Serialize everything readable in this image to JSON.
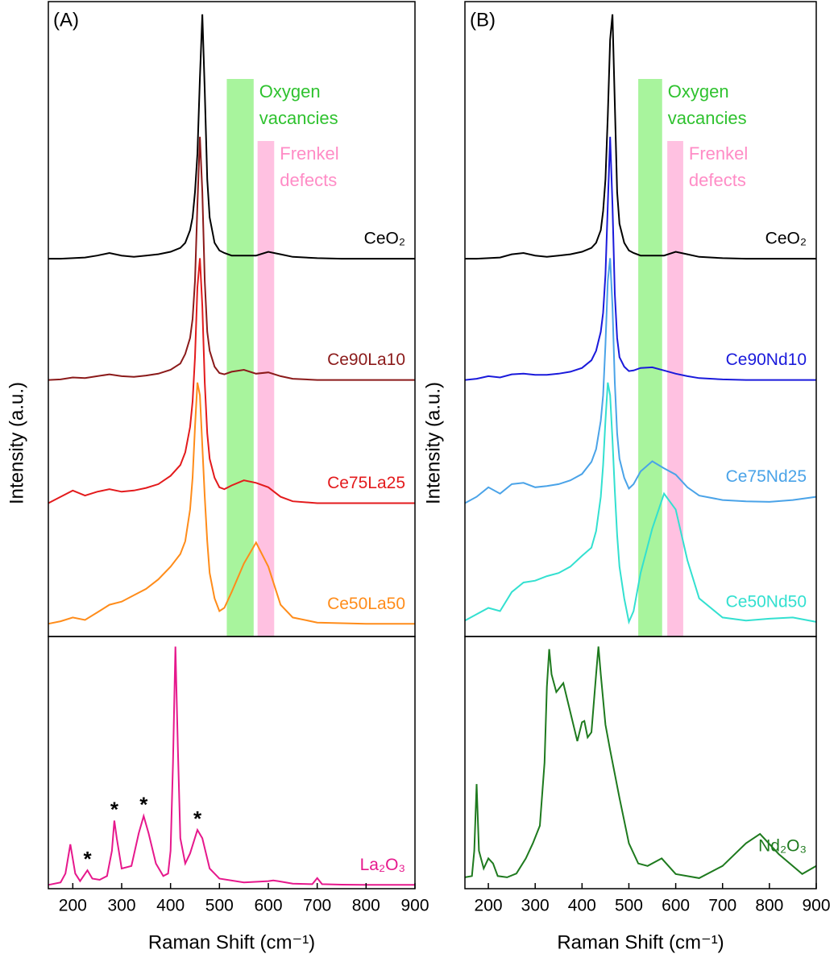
{
  "chart_data": [
    {
      "type": "line",
      "title": "(A)",
      "ylabel": "Intensity (a.u.)",
      "x": [
        150,
        175,
        200,
        225,
        250,
        275,
        300,
        325,
        350,
        375,
        400,
        420,
        430,
        440,
        445,
        450,
        455,
        460,
        465,
        470,
        475,
        480,
        490,
        500,
        510,
        525,
        550,
        575,
        600,
        625,
        650,
        700,
        750,
        800,
        850,
        900
      ],
      "xlim": [
        150,
        900
      ],
      "ylim": [
        0,
        100
      ],
      "bands": [
        {
          "label_lines": [
            "Oxygen",
            "vacancies"
          ],
          "range": [
            515,
            570
          ],
          "color": "#99f28c"
        },
        {
          "label_lines": [
            "Frenkel",
            "defects"
          ],
          "range": [
            578,
            612
          ],
          "color": "#ffb6dc"
        }
      ],
      "series": [
        {
          "name": "CeO₂",
          "color": "#000000",
          "values": [
            59.5,
            59.5,
            59.6,
            59.7,
            60,
            60.4,
            60,
            59.8,
            60,
            60.2,
            60.6,
            61.2,
            62,
            64,
            66,
            70,
            76,
            88,
            98,
            86,
            72,
            66,
            62,
            60.8,
            60.4,
            60,
            60,
            60,
            60.6,
            60.2,
            59.8,
            59.6,
            59.5,
            59.5,
            59.5,
            59.5
          ]
        },
        {
          "name": "Ce90La10",
          "color": "#8b1a1a",
          "values": [
            40.4,
            40.5,
            40.8,
            40.7,
            41,
            41.3,
            41,
            40.9,
            41.1,
            41.4,
            42,
            43,
            44.5,
            47,
            50,
            56,
            68,
            78.7,
            70,
            56,
            48,
            45,
            42.5,
            41.5,
            41.3,
            41.7,
            42,
            41.4,
            41.6,
            41,
            40.6,
            40.4,
            40.4,
            40.4,
            40.4,
            40.4
          ]
        },
        {
          "name": "Ce75La25",
          "color": "#e31a1c",
          "values": [
            21,
            22,
            23,
            22.2,
            22.8,
            23.2,
            22.8,
            23,
            23.4,
            24,
            25.3,
            27,
            29,
            33,
            37,
            44,
            55,
            59.6,
            52,
            40,
            32,
            28,
            25,
            23.5,
            23.2,
            23.8,
            24.6,
            24.2,
            23.5,
            22,
            21.3,
            21,
            21,
            21,
            21,
            21
          ]
        },
        {
          "name": "Ce50La50",
          "color": "#ff8c1a",
          "values": [
            2,
            2.4,
            3,
            2.6,
            3.8,
            5,
            5.5,
            6.5,
            7.5,
            9,
            11,
            13,
            15,
            20,
            25,
            33,
            40,
            38,
            30,
            22,
            15,
            10,
            6,
            4,
            4.5,
            7,
            11.5,
            14.8,
            11,
            5,
            3,
            2.2,
            2.1,
            2,
            2,
            2
          ]
        }
      ]
    },
    {
      "type": "line",
      "xlabel": "Raman Shift (cm⁻¹)",
      "x": [
        150,
        175,
        185,
        195,
        205,
        215,
        230,
        240,
        255,
        270,
        280,
        285,
        290,
        300,
        320,
        335,
        345,
        355,
        370,
        385,
        395,
        400,
        405,
        410,
        415,
        420,
        430,
        440,
        455,
        465,
        480,
        500,
        550,
        600,
        610,
        620,
        650,
        690,
        700,
        710,
        750,
        800,
        850,
        900
      ],
      "xlim": [
        150,
        900
      ],
      "ylim": [
        0,
        100
      ],
      "xticks": [
        200,
        300,
        400,
        500,
        600,
        700,
        800,
        900
      ],
      "annotations": [
        {
          "text": "*",
          "x": 230
        },
        {
          "text": "*",
          "x": 285
        },
        {
          "text": "*",
          "x": 345
        },
        {
          "text": "*",
          "x": 455
        }
      ],
      "series": [
        {
          "name": "La₂O₃",
          "color": "#e6188c",
          "values": [
            1.5,
            2.5,
            6,
            17.6,
            6,
            3,
            7.3,
            4,
            3.5,
            5,
            15,
            27,
            20,
            8,
            9,
            22,
            28.8,
            22,
            10,
            5,
            6,
            15,
            50,
            96,
            55,
            20,
            10,
            14,
            23.3,
            20,
            8,
            4,
            2.5,
            3,
            3.3,
            3,
            2,
            1.8,
            4.2,
            1.8,
            1.6,
            1.5,
            1.5,
            1.5
          ]
        }
      ]
    },
    {
      "type": "line",
      "title": "(B)",
      "ylabel": "Intensity (a.u.)",
      "x": [
        150,
        175,
        200,
        225,
        250,
        275,
        300,
        325,
        350,
        375,
        400,
        420,
        430,
        440,
        445,
        450,
        455,
        460,
        465,
        470,
        475,
        480,
        490,
        500,
        510,
        525,
        550,
        575,
        600,
        625,
        650,
        700,
        750,
        800,
        850,
        900
      ],
      "xlim": [
        150,
        900
      ],
      "ylim": [
        0,
        100
      ],
      "bands": [
        {
          "label_lines": [
            "Oxygen",
            "vacancies"
          ],
          "range": [
            520,
            571
          ],
          "color": "#99f28c"
        },
        {
          "label_lines": [
            "Frenkel",
            "defects"
          ],
          "range": [
            582,
            616
          ],
          "color": "#ffb6dc"
        }
      ],
      "series": [
        {
          "name": "CeO₂",
          "color": "#000000",
          "values": [
            59.5,
            59.5,
            59.6,
            59.7,
            60.2,
            60.4,
            60,
            59.8,
            60,
            60.2,
            60.6,
            61.2,
            62,
            64,
            67,
            72,
            82,
            94,
            98,
            84,
            70,
            65,
            62,
            60.8,
            60.4,
            60,
            60,
            60,
            60.6,
            60.2,
            59.8,
            59.6,
            59.5,
            59.5,
            59.5,
            59.5
          ]
        },
        {
          "name": "Ce90Nd10",
          "color": "#1a1adb",
          "values": [
            40.4,
            40.6,
            41,
            40.8,
            41.3,
            41.4,
            41.2,
            41.2,
            41.4,
            41.7,
            42.3,
            43.5,
            45,
            48,
            51,
            57,
            68,
            78.7,
            68,
            54,
            47,
            44,
            42.5,
            41.8,
            41.9,
            42.3,
            42.4,
            41.9,
            41.4,
            41,
            40.7,
            40.5,
            40.4,
            40.4,
            40.4,
            40.4
          ]
        },
        {
          "name": "Ce75Nd25",
          "color": "#4aa3e8",
          "values": [
            21,
            22,
            23.5,
            22.5,
            24,
            24.2,
            23.5,
            23.7,
            24,
            24.6,
            25.6,
            27.5,
            29.5,
            34,
            38,
            46,
            56,
            59.6,
            52,
            40,
            32,
            28,
            25,
            23.3,
            24,
            26,
            27.6,
            26.5,
            25.5,
            23.5,
            22.2,
            21.5,
            21.3,
            21.2,
            21.5,
            22
          ]
        },
        {
          "name": "Ce50Nd50",
          "color": "#33e0d0",
          "values": [
            2.5,
            3.5,
            4.5,
            4,
            7,
            8.5,
            8.8,
            9.5,
            10,
            11,
            12.7,
            14,
            16.6,
            22,
            27,
            34,
            40,
            38,
            31,
            23,
            16,
            11,
            6,
            2.3,
            4,
            10,
            17,
            22.5,
            20,
            12,
            6,
            3,
            2.5,
            2.8,
            3,
            2.3
          ]
        }
      ]
    },
    {
      "type": "line",
      "xlabel": "Raman Shift (cm⁻¹)",
      "x": [
        150,
        165,
        170,
        175,
        180,
        190,
        200,
        210,
        220,
        240,
        260,
        280,
        295,
        310,
        320,
        325,
        330,
        335,
        345,
        360,
        375,
        390,
        400,
        405,
        412,
        420,
        430,
        435,
        440,
        450,
        460,
        480,
        500,
        520,
        540,
        570,
        600,
        650,
        700,
        750,
        780,
        820,
        870,
        900
      ],
      "xlim": [
        150,
        900
      ],
      "ylim": [
        0,
        100
      ],
      "xticks": [
        200,
        300,
        400,
        500,
        600,
        700,
        800,
        900
      ],
      "series": [
        {
          "name": "Nd₂O₃",
          "color": "#1e7a1e",
          "values": [
            4.5,
            5,
            15,
            41.5,
            15,
            8,
            12,
            10,
            5,
            4.5,
            6,
            12,
            18,
            25,
            50,
            80,
            95,
            85,
            78,
            81.5,
            70,
            58.5,
            66,
            66.5,
            60,
            62,
            85,
            96,
            85,
            65,
            55,
            36,
            18,
            10,
            9,
            12,
            5.8,
            4.2,
            9,
            18,
            21.7,
            13.7,
            5.8,
            9
          ]
        }
      ]
    }
  ]
}
